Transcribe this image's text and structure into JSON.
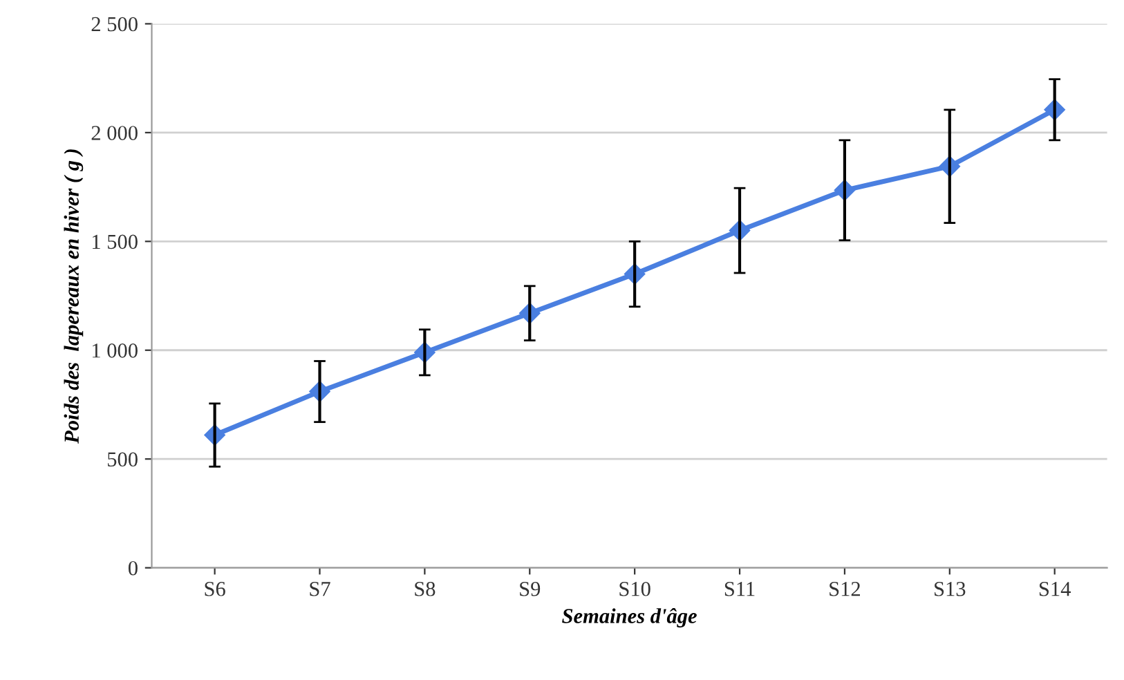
{
  "chart_data": {
    "type": "line",
    "xlabel": "Semaines d'âge",
    "ylabel": "Poids des  lapereaux en hiver ( g )",
    "categories": [
      "S6",
      "S7",
      "S8",
      "S9",
      "S10",
      "S11",
      "S12",
      "S13",
      "S14"
    ],
    "series": [
      {
        "color": "#4a7fe0",
        "values": [
          610,
          810,
          990,
          1170,
          1350,
          1550,
          1735,
          1845,
          2105
        ],
        "errors": [
          145,
          140,
          105,
          125,
          150,
          195,
          230,
          260,
          140
        ]
      }
    ],
    "ylim": [
      0,
      2500
    ],
    "yticks": [
      0,
      500,
      {
        "value": 1000,
        "label": "1 000"
      },
      {
        "value": 1500,
        "label": "1 500"
      },
      {
        "value": 2000,
        "label": "2 000"
      },
      {
        "value": 2500,
        "label": "2 500"
      }
    ],
    "grid": "y",
    "marker": "diamond",
    "line_style": "solid",
    "legend": false
  }
}
